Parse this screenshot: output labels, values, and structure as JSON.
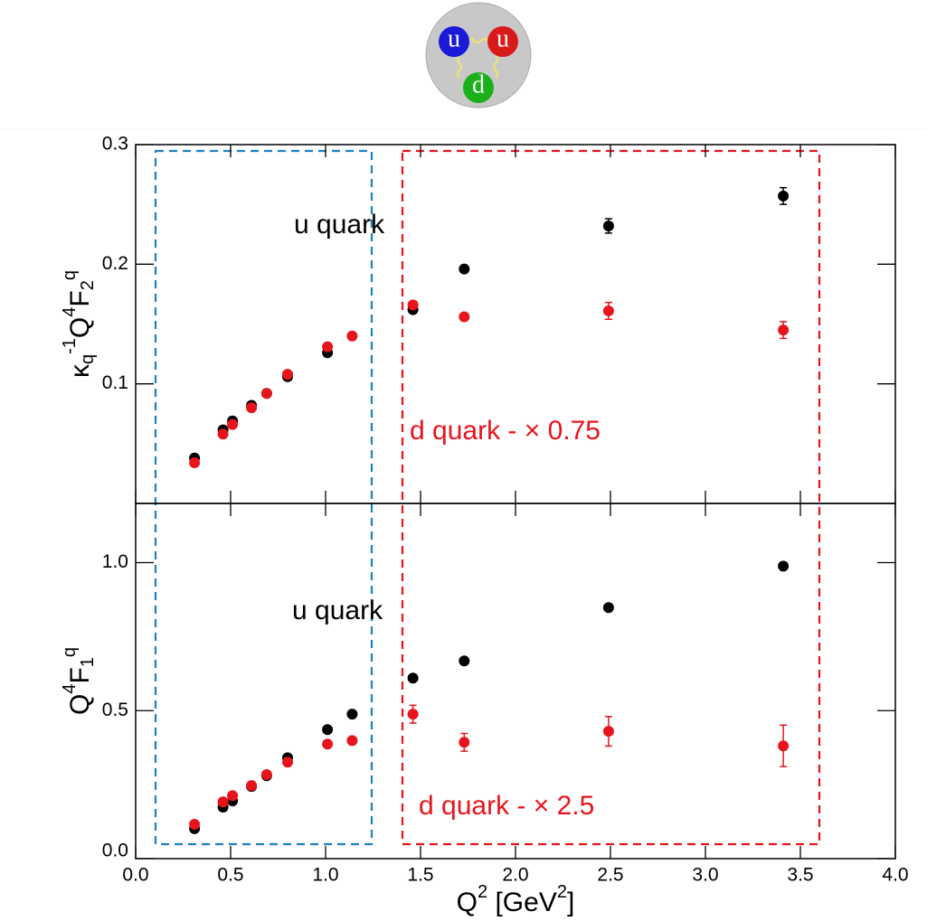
{
  "logo_labels": [
    "u",
    "u",
    "d"
  ],
  "chart_data": [
    {
      "type": "scatter",
      "y_label_parts": [
        "κ",
        "q",
        "-1",
        "Q",
        "4",
        "F",
        "2",
        "q"
      ],
      "xlim": [
        0,
        4
      ],
      "xticks": [
        0,
        0.5,
        1,
        1.5,
        2,
        2.5,
        3,
        3.5,
        4
      ],
      "ylim": [
        0,
        0.3
      ],
      "yticks": [
        0.1,
        0.2,
        0.3
      ],
      "series": [
        {
          "name": "u quark",
          "color": "#000000",
          "x": [
            0.31,
            0.46,
            0.51,
            0.61,
            0.69,
            0.8,
            1.01,
            1.46,
            1.73,
            2.49,
            3.41
          ],
          "values": [
            0.038,
            0.0615,
            0.069,
            0.082,
            0.092,
            0.106,
            0.126,
            0.162,
            0.196,
            0.232,
            0.257
          ],
          "errors": [
            0.001,
            0.001,
            0.001,
            0.001,
            0.001,
            0.001,
            0.001,
            0.002,
            0.002,
            0.006,
            0.007
          ]
        },
        {
          "name": "d quark - × 0.75",
          "color": "#e8141c",
          "x": [
            0.31,
            0.46,
            0.51,
            0.61,
            0.69,
            0.8,
            1.01,
            1.14,
            1.46,
            1.73,
            2.49,
            3.41
          ],
          "values": [
            0.034,
            0.058,
            0.066,
            0.08,
            0.092,
            0.108,
            0.131,
            0.14,
            0.166,
            0.156,
            0.161,
            0.145
          ],
          "errors": [
            0.001,
            0.001,
            0.001,
            0.001,
            0.001,
            0.001,
            0.001,
            0.001,
            0.003,
            0.003,
            0.007,
            0.007
          ]
        }
      ]
    },
    {
      "type": "scatter",
      "x_label_parts": [
        "Q",
        "2",
        " [GeV",
        "2",
        "]"
      ],
      "y_label_parts": [
        "Q",
        "4",
        "F",
        "1",
        "q"
      ],
      "xlim": [
        0,
        4
      ],
      "xticks": [
        {
          "value": 0,
          "label": "0.0"
        },
        0.5,
        {
          "value": 1,
          "label": "1.0"
        },
        1.5,
        {
          "value": 2,
          "label": "2.0"
        },
        2.5,
        {
          "value": 3,
          "label": "3.0"
        },
        3.5,
        {
          "value": 4,
          "label": "4.0"
        }
      ],
      "ylim": [
        0,
        1.2
      ],
      "yticks": [
        {
          "value": 0,
          "label": "0.0"
        },
        0.5,
        {
          "value": 1,
          "label": "1.0"
        }
      ],
      "series": [
        {
          "name": "u quark",
          "color": "#000000",
          "x": [
            0.31,
            0.46,
            0.51,
            0.61,
            0.69,
            0.8,
            1.01,
            1.14,
            1.46,
            1.73,
            2.49,
            3.41
          ],
          "values": [
            0.101,
            0.174,
            0.195,
            0.244,
            0.28,
            0.341,
            0.436,
            0.488,
            0.61,
            0.668,
            0.848,
            0.988
          ],
          "errors": [
            0.003,
            0.003,
            0.003,
            0.003,
            0.003,
            0.003,
            0.004,
            0.004,
            0.006,
            0.006,
            0.008,
            0.01
          ]
        },
        {
          "name": "d quark - × 2.5",
          "color": "#e8141c",
          "x": [
            0.31,
            0.46,
            0.51,
            0.61,
            0.69,
            0.8,
            1.01,
            1.14,
            1.46,
            1.73,
            2.49,
            3.41
          ],
          "values": [
            0.116,
            0.192,
            0.213,
            0.247,
            0.284,
            0.326,
            0.387,
            0.399,
            0.488,
            0.393,
            0.43,
            0.381
          ],
          "errors": [
            0.003,
            0.003,
            0.003,
            0.003,
            0.003,
            0.004,
            0.005,
            0.006,
            0.03,
            0.03,
            0.05,
            0.07
          ]
        }
      ]
    }
  ]
}
